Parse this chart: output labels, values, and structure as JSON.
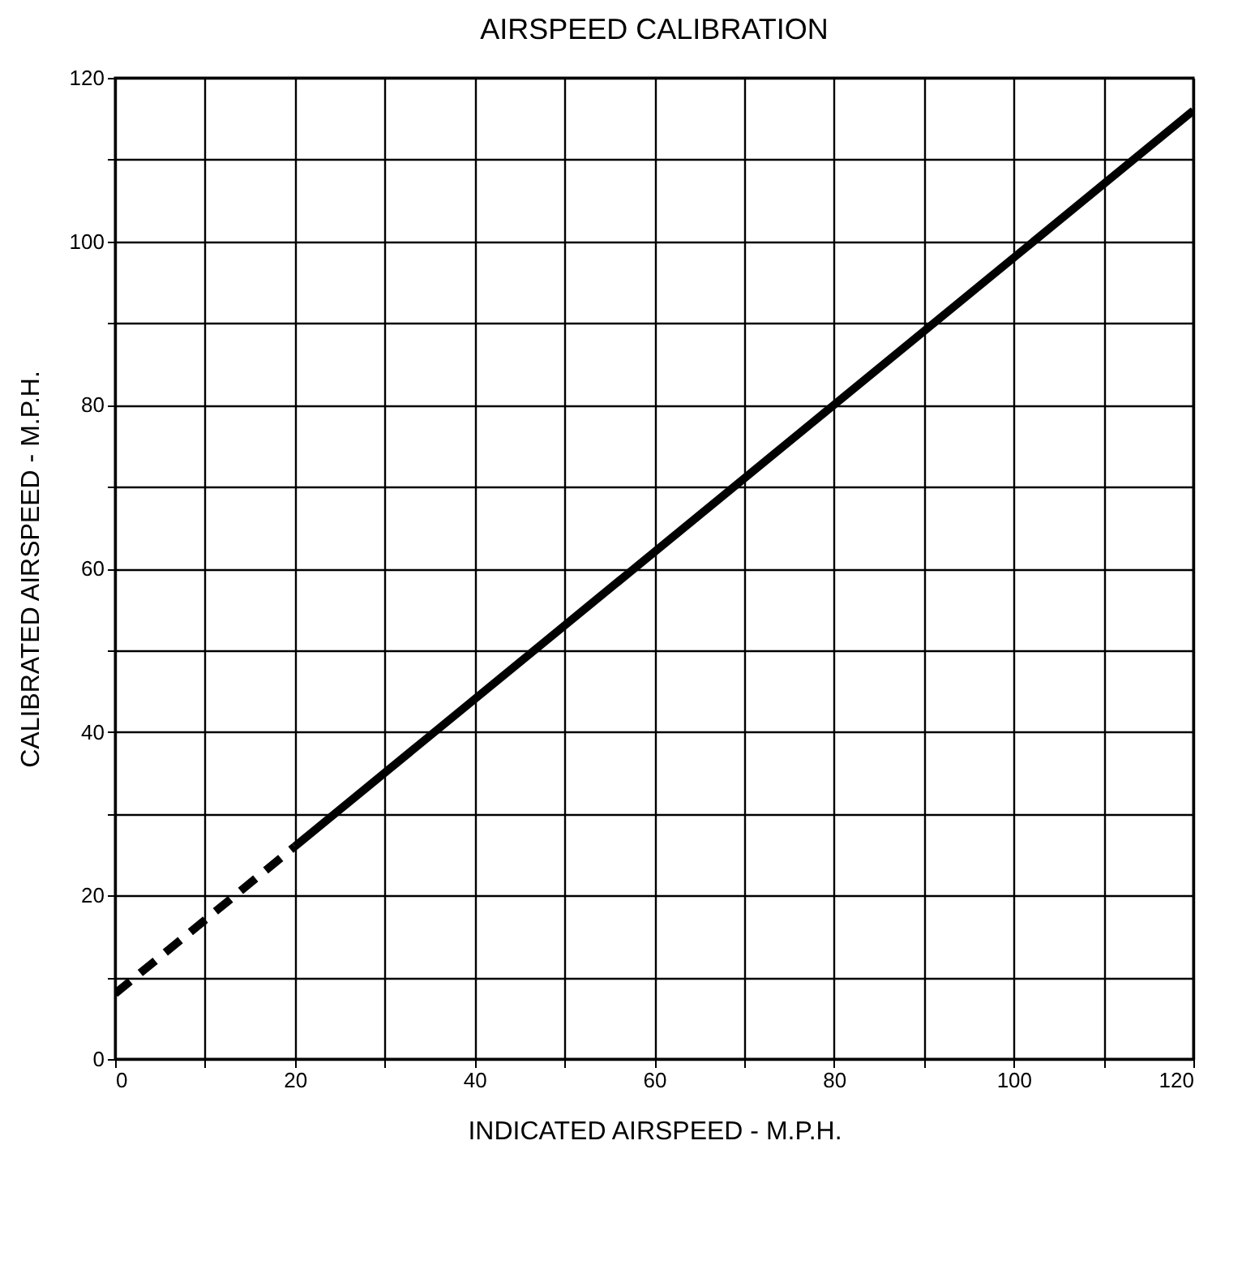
{
  "chart_data": {
    "type": "line",
    "title": "AIRSPEED CALIBRATION",
    "xlabel": "INDICATED AIRSPEED - M.P.H.",
    "ylabel": "CALIBRATED AIRSPEED - M.P.H.",
    "xlim": [
      0,
      120
    ],
    "ylim": [
      0,
      120
    ],
    "xticks": [
      0,
      {
        "value": 10,
        "label": null
      },
      20,
      {
        "value": 30,
        "label": null
      },
      40,
      {
        "value": 50,
        "label": null
      },
      60,
      {
        "value": 70,
        "label": null
      },
      80,
      {
        "value": 90,
        "label": null
      },
      100,
      {
        "value": 110,
        "label": null
      },
      120
    ],
    "yticks": [
      0,
      {
        "value": 10,
        "label": null
      },
      20,
      {
        "value": 30,
        "label": null
      },
      40,
      {
        "value": 50,
        "label": null
      },
      60,
      {
        "value": 70,
        "label": null
      },
      80,
      {
        "value": 90,
        "label": null
      },
      100,
      {
        "value": 110,
        "label": null
      },
      120
    ],
    "grid": true,
    "marker": "none",
    "series": [
      {
        "color": "#000000",
        "line_style": "dashed",
        "x": [
          0,
          20
        ],
        "values": [
          8,
          26
        ]
      },
      {
        "color": "#000000",
        "line_style": "solid",
        "x": [
          20,
          120
        ],
        "values": [
          26,
          116
        ]
      }
    ]
  }
}
